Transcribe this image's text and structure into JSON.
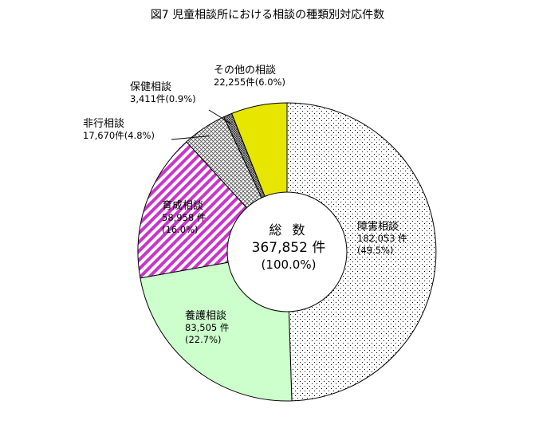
{
  "title": "図7  児童相談所における相談の種類別対応件数",
  "center": {
    "label": "総 数",
    "value": "367,852 件",
    "percent": "(100.0%)"
  },
  "chart_data": {
    "type": "pie",
    "style": "donut",
    "title": "図7  児童相談所における相談の種類別対応件数",
    "total": 367852,
    "total_label": "367,852 件",
    "slices": [
      {
        "name": "障害相談",
        "value": 182053,
        "value_label": "182,053 件",
        "percent": 49.5,
        "percent_label": "(49.5%)",
        "pattern": "dots",
        "color": "#ffffff"
      },
      {
        "name": "養護相談",
        "value": 83505,
        "value_label": "83,505 件",
        "percent": 22.7,
        "percent_label": "(22.7%)",
        "pattern": "solid",
        "color": "#ccffcc"
      },
      {
        "name": "育成相談",
        "value": 58958,
        "value_label": "58,958 件",
        "percent": 16.0,
        "percent_label": "(16.0%)",
        "pattern": "diagonal-stripes",
        "color": "#cc33cc"
      },
      {
        "name": "非行相談",
        "value": 17670,
        "value_label": "17,670件(4.8%)",
        "percent": 4.8,
        "pattern": "crosshatch",
        "color": "#888888"
      },
      {
        "name": "保健相談",
        "value": 3411,
        "value_label": "3,411件(0.9%)",
        "percent": 0.9,
        "pattern": "crosshatch-dense",
        "color": "#666666"
      },
      {
        "name": "その他の相談",
        "value": 22255,
        "value_label": "22,255件(6.0%)",
        "percent": 6.0,
        "pattern": "solid",
        "color": "#e6e600"
      }
    ],
    "start": "12 o'clock",
    "direction": "clockwise",
    "legend": "none"
  }
}
